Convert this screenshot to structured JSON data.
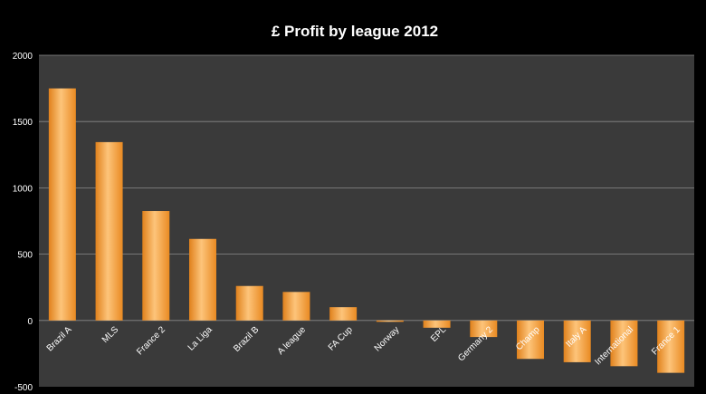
{
  "chart_data": {
    "type": "bar",
    "title": "£ Profit by league 2012",
    "xlabel": "",
    "ylabel": "",
    "ylim": [
      -500,
      2000
    ],
    "yticks": [
      -500,
      0,
      500,
      1000,
      1500,
      2000
    ],
    "grid": true,
    "legend": "none",
    "categories": [
      "Brazil A",
      "MLS",
      "France 2",
      "La Liga",
      "Brazil B",
      "A league",
      "FA Cup",
      "Norway",
      "EPL",
      "Germany 2",
      "Champ",
      "Italy A",
      "International",
      "France 1"
    ],
    "values": [
      1750,
      1345,
      825,
      615,
      260,
      215,
      100,
      -5,
      -55,
      -125,
      -290,
      -315,
      -345,
      -395
    ],
    "colors": {
      "background": "#000000",
      "plot_area": "#3a3a3a",
      "bar": "#f49a2c",
      "bar_highlight": "#fdd08a",
      "gridline": "#8a8a8a",
      "text": "#ffffff"
    }
  }
}
